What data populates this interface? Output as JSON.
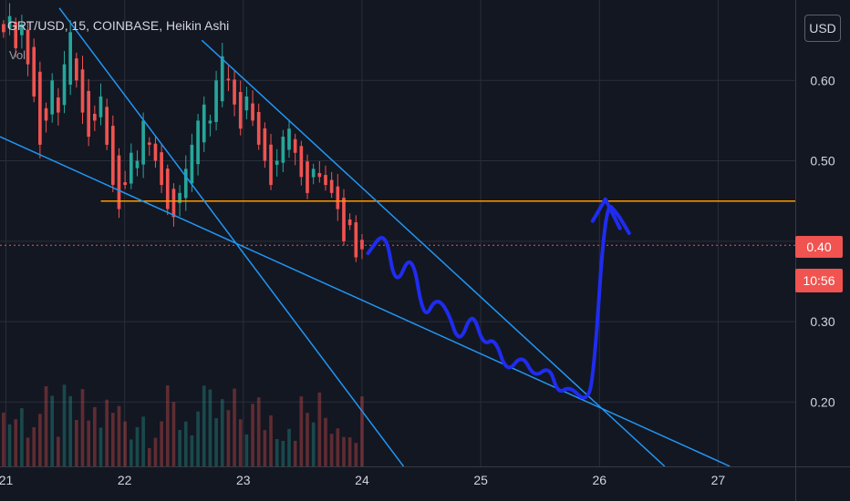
{
  "header": {
    "symbol_line": "GRT/USD, 15, COINBASE, Heikin Ashi",
    "volume_label": "Vol",
    "currency_button": "USD"
  },
  "price_axis": {
    "last_price": "0.40",
    "countdown": "10:56"
  },
  "colors": {
    "background": "#131722",
    "grid": "#2a2e39",
    "up_candle": "#26a69a",
    "down_candle": "#ef5350",
    "trendline": "#2196f3",
    "horizontal_level": "#ff9800",
    "projection": "#1f2cf0",
    "price_tag": "#f05350"
  },
  "chart_data": {
    "type": "candlestick",
    "x_axis": {
      "ticks": [
        "21",
        "22",
        "23",
        "24",
        "25",
        "26",
        "27"
      ],
      "range": [
        20.95,
        27.65
      ]
    },
    "y_axis": {
      "ticks": [
        "0.20",
        "0.30",
        "0.40",
        "0.50",
        "0.60"
      ],
      "range": [
        0.12,
        0.7
      ]
    },
    "last_price": 0.395,
    "horizontal_level": 0.45,
    "level_start_day": 21.8,
    "trendlines": [
      {
        "from": [
          20.95,
          0.53
        ],
        "to": [
          27.1,
          0.12
        ]
      },
      {
        "from": [
          21.45,
          0.69
        ],
        "to": [
          24.35,
          0.12
        ]
      },
      {
        "from": [
          22.65,
          0.65
        ],
        "to": [
          26.55,
          0.12
        ]
      }
    ],
    "projection_path": [
      [
        24.05,
        0.385
      ],
      [
        24.2,
        0.415
      ],
      [
        24.28,
        0.34
      ],
      [
        24.42,
        0.39
      ],
      [
        24.52,
        0.3
      ],
      [
        24.62,
        0.33
      ],
      [
        24.72,
        0.315
      ],
      [
        24.82,
        0.27
      ],
      [
        24.93,
        0.315
      ],
      [
        25.02,
        0.27
      ],
      [
        25.12,
        0.28
      ],
      [
        25.22,
        0.235
      ],
      [
        25.35,
        0.26
      ],
      [
        25.45,
        0.23
      ],
      [
        25.58,
        0.245
      ],
      [
        25.65,
        0.21
      ],
      [
        25.75,
        0.22
      ],
      [
        25.88,
        0.2
      ],
      [
        25.95,
        0.225
      ],
      [
        26.05,
        0.45
      ],
      [
        26.15,
        0.435
      ],
      [
        26.25,
        0.41
      ]
    ],
    "closes": [
      0.66,
      0.68,
      0.64,
      0.67,
      0.62,
      0.58,
      0.52,
      0.55,
      0.6,
      0.56,
      0.62,
      0.66,
      0.6,
      0.56,
      0.53,
      0.55,
      0.58,
      0.52,
      0.47,
      0.44,
      0.47,
      0.51,
      0.5,
      0.55,
      0.52,
      0.5,
      0.47,
      0.44,
      0.43,
      0.46,
      0.49,
      0.52,
      0.55,
      0.57,
      0.55,
      0.6,
      0.63,
      0.6,
      0.57,
      0.54,
      0.58,
      0.55,
      0.52,
      0.5,
      0.47,
      0.5,
      0.53,
      0.54,
      0.51,
      0.48,
      0.46,
      0.49,
      0.48,
      0.47,
      0.46,
      0.44,
      0.4,
      0.42,
      0.38,
      0.39
    ]
  }
}
